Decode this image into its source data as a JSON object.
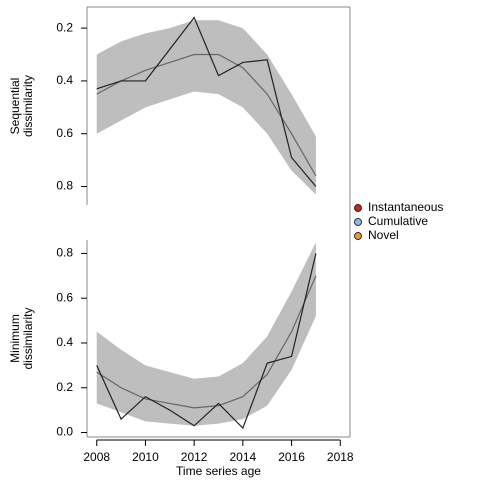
{
  "chart_data": [
    {
      "type": "line",
      "ylabel": [
        "Sequential",
        "dissimilarity"
      ],
      "x": [
        2008,
        2009,
        2010,
        2011,
        2012,
        2013,
        2014,
        2015,
        2016,
        2017
      ],
      "xlim": [
        2007.6,
        2018.4
      ],
      "ylim": [
        0.87,
        0.12
      ],
      "yticks": [
        0.2,
        0.4,
        0.6,
        0.8
      ],
      "band": {
        "color": "#bebebe",
        "lower": [
          0.3,
          0.25,
          0.22,
          0.2,
          0.17,
          0.17,
          0.2,
          0.3,
          0.45,
          0.61
        ],
        "upper": [
          0.6,
          0.55,
          0.5,
          0.47,
          0.44,
          0.45,
          0.5,
          0.6,
          0.74,
          0.83
        ]
      },
      "series": [
        {
          "color": "#666666",
          "values": [
            0.45,
            0.4,
            0.36,
            0.33,
            0.3,
            0.3,
            0.35,
            0.45,
            0.6,
            0.76
          ]
        },
        {
          "color": "#222222",
          "values": [
            0.43,
            0.4,
            0.4,
            0.28,
            0.16,
            0.38,
            0.33,
            0.32,
            0.69,
            0.8
          ]
        }
      ]
    },
    {
      "type": "line",
      "ylabel": [
        "Minimum",
        "dissimilarity"
      ],
      "xlabel": "Time series age",
      "x": [
        2008,
        2009,
        2010,
        2011,
        2012,
        2013,
        2014,
        2015,
        2016,
        2017
      ],
      "xlim": [
        2007.6,
        2018.4
      ],
      "xticks": [
        2008,
        2010,
        2012,
        2014,
        2016,
        2018
      ],
      "ylim": [
        -0.02,
        0.86
      ],
      "yticks": [
        {
          "value": 0,
          "label": "0.0"
        },
        0.2,
        0.4,
        0.6,
        0.8
      ],
      "band": {
        "color": "#bebebe",
        "lower": [
          0.13,
          0.09,
          0.05,
          0.04,
          0.03,
          0.04,
          0.06,
          0.12,
          0.28,
          0.52
        ],
        "upper": [
          0.45,
          0.37,
          0.3,
          0.27,
          0.24,
          0.25,
          0.31,
          0.43,
          0.63,
          0.85
        ]
      },
      "series": [
        {
          "color": "#666666",
          "values": [
            0.27,
            0.2,
            0.15,
            0.13,
            0.11,
            0.12,
            0.16,
            0.26,
            0.45,
            0.7
          ]
        },
        {
          "color": "#222222",
          "values": [
            0.3,
            0.06,
            0.16,
            0.1,
            0.03,
            0.13,
            0.02,
            0.31,
            0.34,
            0.8
          ]
        }
      ]
    }
  ],
  "legend": [
    {
      "name": "Instantaneous",
      "color": "#cc2222"
    },
    {
      "name": "Cumulative",
      "color": "#88bbdd"
    },
    {
      "name": "Novel",
      "color": "#e69a2e"
    }
  ]
}
